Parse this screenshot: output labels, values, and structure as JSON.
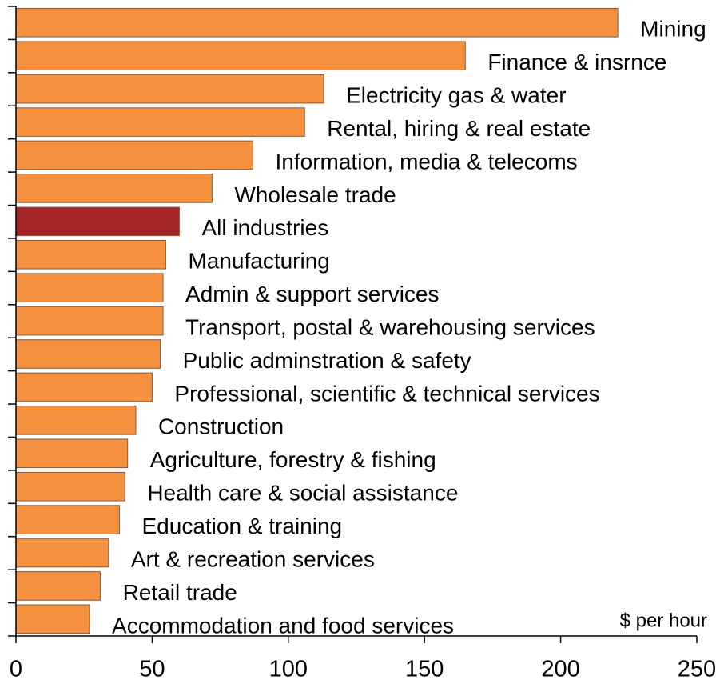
{
  "chart_data": {
    "type": "bar",
    "orientation": "horizontal",
    "categories": [
      "Mining",
      "Finance & insrnce",
      "Electricity gas & water",
      "Rental, hiring & real estate",
      "Information, media & telecoms",
      "Wholesale trade",
      "All industries",
      "Manufacturing",
      "Admin & support services",
      "Transport, postal & warehousing services",
      "Public adminstration & safety",
      "Professional, scientific & technical services",
      "Construction",
      "Agriculture, forestry & fishing",
      "Health care & social assistance",
      "Education & training",
      "Art & recreation services",
      "Retail trade",
      "Accommodation and food services"
    ],
    "values": [
      221,
      165,
      113,
      106,
      87,
      72,
      60,
      55,
      54,
      54,
      53,
      50,
      44,
      41,
      40,
      38,
      34,
      31,
      27
    ],
    "colors": [
      "#f5913e",
      "#f5913e",
      "#f5913e",
      "#f5913e",
      "#f5913e",
      "#f5913e",
      "#a52428",
      "#f5913e",
      "#f5913e",
      "#f5913e",
      "#f5913e",
      "#f5913e",
      "#f5913e",
      "#f5913e",
      "#f5913e",
      "#f5913e",
      "#f5913e",
      "#f5913e",
      "#f5913e"
    ],
    "xlim": [
      0,
      250
    ],
    "xticks": [
      0,
      50,
      100,
      150,
      200,
      250
    ],
    "unit_label": "$ per hour"
  }
}
